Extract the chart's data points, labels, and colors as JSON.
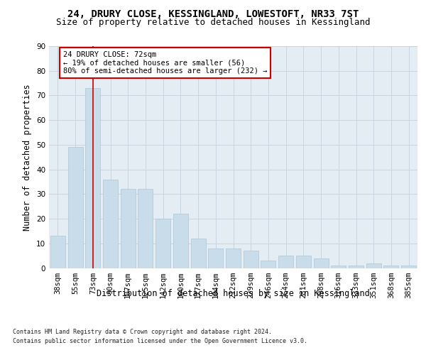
{
  "title_line1": "24, DRURY CLOSE, KESSINGLAND, LOWESTOFT, NR33 7ST",
  "title_line2": "Size of property relative to detached houses in Kessingland",
  "xlabel": "Distribution of detached houses by size in Kessingland",
  "ylabel": "Number of detached properties",
  "categories": [
    "38sqm",
    "55sqm",
    "73sqm",
    "90sqm",
    "107sqm",
    "125sqm",
    "142sqm",
    "160sqm",
    "177sqm",
    "194sqm",
    "212sqm",
    "229sqm",
    "246sqm",
    "264sqm",
    "281sqm",
    "298sqm",
    "316sqm",
    "333sqm",
    "351sqm",
    "368sqm",
    "385sqm"
  ],
  "values": [
    13,
    49,
    73,
    36,
    32,
    32,
    20,
    22,
    12,
    8,
    8,
    7,
    3,
    5,
    5,
    4,
    1,
    1,
    2,
    1,
    1
  ],
  "bar_color": "#c9dcea",
  "bar_edge_color": "#afc5d5",
  "vline_x": 2,
  "vline_color": "#cc0000",
  "annotation_text": "24 DRURY CLOSE: 72sqm\n← 19% of detached houses are smaller (56)\n80% of semi-detached houses are larger (232) →",
  "annotation_box_facecolor": "#ffffff",
  "annotation_box_edgecolor": "#cc0000",
  "ylim": [
    0,
    90
  ],
  "yticks": [
    0,
    10,
    20,
    30,
    40,
    50,
    60,
    70,
    80,
    90
  ],
  "grid_color": "#c8d4e0",
  "bg_color": "#e4ecf4",
  "footer_line1": "Contains HM Land Registry data © Crown copyright and database right 2024.",
  "footer_line2": "Contains public sector information licensed under the Open Government Licence v3.0.",
  "title_fontsize": 10,
  "subtitle_fontsize": 9,
  "tick_fontsize": 7.5,
  "ylabel_fontsize": 8.5,
  "xlabel_fontsize": 8.5,
  "annotation_fontsize": 7.5,
  "footer_fontsize": 6.0
}
